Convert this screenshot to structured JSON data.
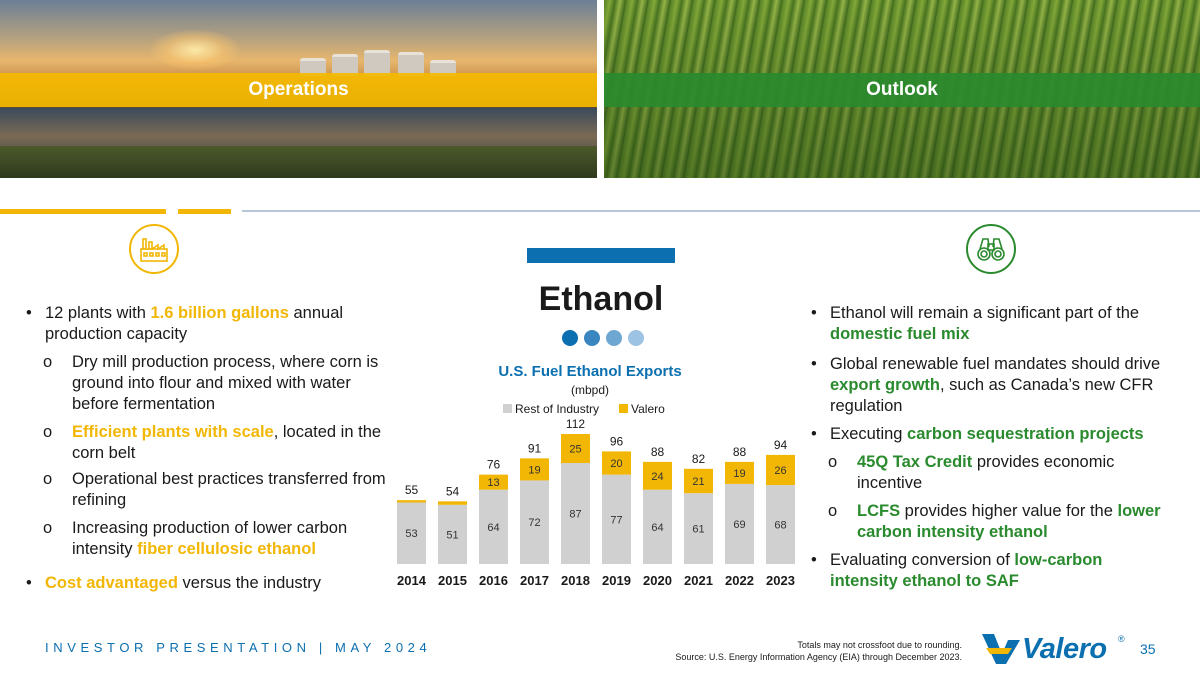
{
  "panels": {
    "operations_label": "Operations",
    "outlook_label": "Outlook"
  },
  "icons": {
    "left": "factory-icon",
    "right": "binoculars-icon"
  },
  "colors": {
    "blue": "#0b6fb0",
    "yellow": "#f2b705",
    "green": "#2a8a2e",
    "gray": "#d0d0d0"
  },
  "title": "Ethanol",
  "left_bullets": {
    "b1": {
      "pre": "12 plants with ",
      "hl": "1.6 billion gallons",
      "post": " annual production capacity"
    },
    "s1": "Dry mill production process, where corn is ground into flour and mixed with water before fermentation",
    "s2": {
      "hl": "Efficient plants with scale",
      "post": ", located in the corn belt"
    },
    "s3": "Operational best practices transferred from refining",
    "s4": {
      "pre": "Increasing production of lower carbon intensity ",
      "hl": "fiber cellulosic ethanol"
    },
    "b2": {
      "hl": "Cost advantaged",
      "post": " versus the industry"
    }
  },
  "right_bullets": {
    "b1": {
      "pre": "Ethanol will remain a significant part of the ",
      "hl": "domestic fuel mix"
    },
    "b2": {
      "pre": "Global renewable fuel mandates should drive ",
      "hl": "export growth",
      "post": ", such as Canada’s new CFR regulation"
    },
    "b3": {
      "pre": "Executing ",
      "hl": "carbon sequestration projects"
    },
    "s1": {
      "hl": "45Q Tax Credit",
      "post": " provides economic incentive"
    },
    "s2": {
      "hl": "LCFS",
      "mid": " provides higher value for the ",
      "hl2": "lower carbon intensity ethanol"
    },
    "b4": {
      "pre": "Evaluating conversion of ",
      "hl": "low-carbon intensity ethanol to SAF"
    }
  },
  "chart_data": {
    "type": "bar",
    "stacked": true,
    "title": "U.S. Fuel Ethanol Exports",
    "subtitle": "(mbpd)",
    "legend": [
      "Rest of Industry",
      "Valero"
    ],
    "categories": [
      "2014",
      "2015",
      "2016",
      "2017",
      "2018",
      "2019",
      "2020",
      "2021",
      "2022",
      "2023"
    ],
    "series": [
      {
        "name": "Rest of Industry",
        "color": "#d0d0d0",
        "values": [
          53,
          51,
          64,
          72,
          87,
          77,
          64,
          61,
          69,
          68
        ]
      },
      {
        "name": "Valero",
        "color": "#f2b705",
        "values": [
          2,
          3,
          13,
          19,
          25,
          20,
          24,
          21,
          19,
          26
        ]
      }
    ],
    "valero_labels": [
      "",
      "",
      "13",
      "19",
      "25",
      "20",
      "24",
      "21",
      "19",
      "26"
    ],
    "totals": [
      55,
      54,
      76,
      91,
      112,
      96,
      88,
      82,
      88,
      94
    ]
  },
  "footer": {
    "left": "INVESTOR PRESENTATION | MAY 2024",
    "note1": "Totals may not crossfoot due to rounding.",
    "note2": "Source: U.S. Energy Information Agency (EIA) through December 2023.",
    "logo": "Valero",
    "logo_mark": "®",
    "page": "35"
  }
}
